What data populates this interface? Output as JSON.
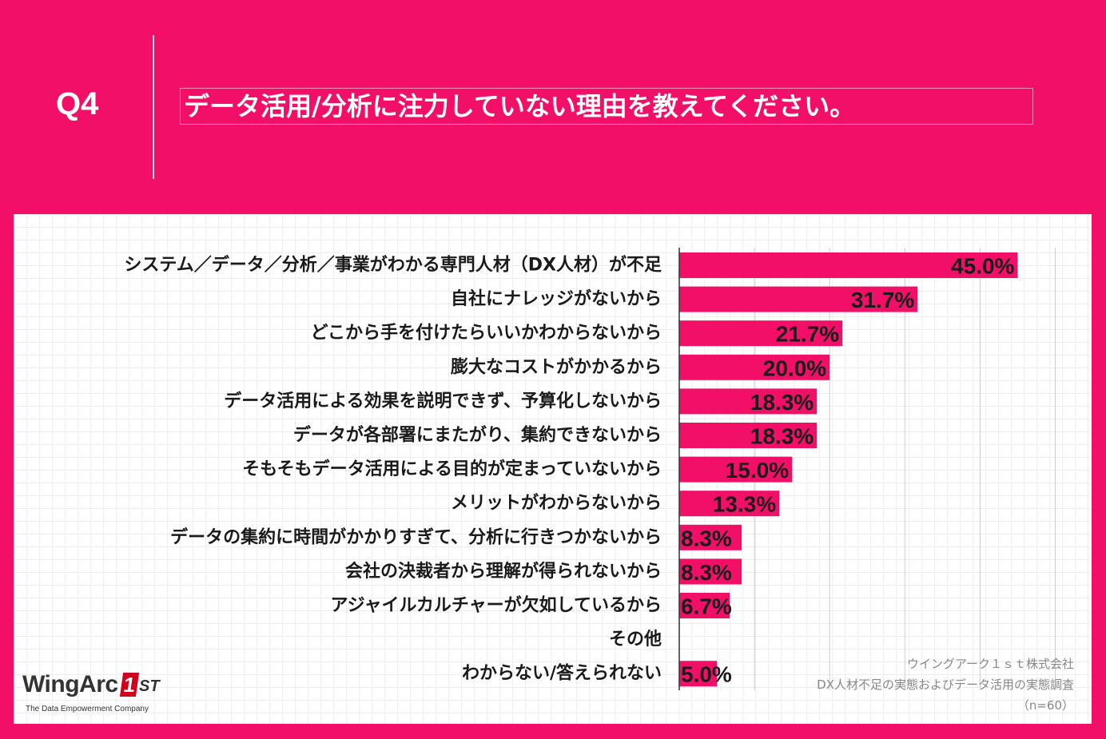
{
  "header": {
    "q_label": "Q4",
    "title": "データ活用/分析に注力していない理由を教えてください。"
  },
  "colors": {
    "background": "#F20F67",
    "bar": "#F20F67"
  },
  "chart_data": {
    "type": "bar",
    "orientation": "horizontal",
    "categories": [
      "システム／データ／分析／事業がわかる専門人材（DX人材）が不足",
      "自社にナレッジがないから",
      "どこから手を付けたらいいかわからないから",
      "膨大なコストがかかるから",
      "データ活用による効果を説明できず、予算化しないから",
      "データが各部署にまたがり、集約できないから",
      "そもそもデータ活用による目的が定まっていないから",
      "メリットがわからないから",
      "データの集約に時間がかかりすぎて、分析に行きつかないから",
      "会社の決裁者から理解が得られないから",
      "アジャイルカルチャーが欠如しているから",
      "その他",
      "わからない/答えられない"
    ],
    "values": [
      45.0,
      31.7,
      21.7,
      20.0,
      18.3,
      18.3,
      15.0,
      13.3,
      8.3,
      8.3,
      6.7,
      null,
      5.0
    ],
    "value_labels": [
      "45.0%",
      "31.7%",
      "21.7%",
      "20.0%",
      "18.3%",
      "18.3%",
      "15.0%",
      "13.3%",
      "8.3%",
      "8.3%",
      "6.7%",
      "",
      "5.0%"
    ],
    "xlim": [
      0,
      50
    ],
    "grid": true,
    "unit": "%"
  },
  "logo": {
    "name": "WingArc",
    "badge": "1",
    "suffix": "ST",
    "tagline": "The Data Empowerment Company"
  },
  "source": {
    "company": "ウイングアーク１ｓｔ株式会社",
    "survey": "DX人材不足の実態およびデータ活用の実態調査",
    "n": "（n=60）"
  }
}
